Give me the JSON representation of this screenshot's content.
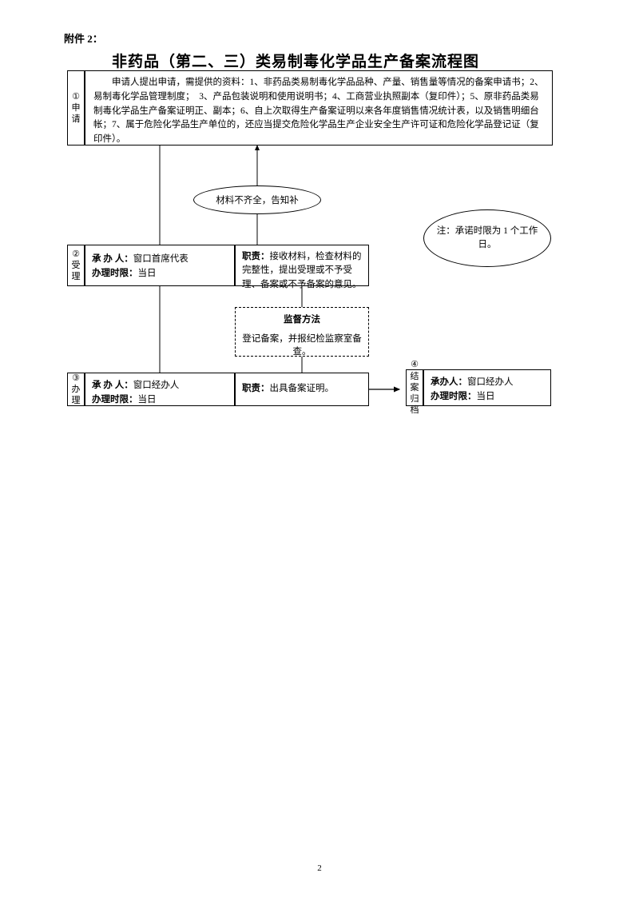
{
  "attachment_label": "附件 2：",
  "title": "非药品（第二、三）类易制毒化学品生产备案流程图",
  "page_number": "2",
  "colors": {
    "background": "#ffffff",
    "border": "#000000",
    "text": "#000000"
  },
  "step1": {
    "label_num": "①",
    "label_text": "申请",
    "content": "　　申请人提出申请，需提供的资料：1、非药品类易制毒化学品品种、产量、销售量等情况的备案申请书；2、易制毒化学品管理制度；　3、产品包装说明和使用说明书；4、工商营业执照副本（复印件）；5、原非药品类易制毒化学品生产备案证明正、副本；6、自上次取得生产备案证明以来各年度销售情况统计表，以及销售明细台帐；7、属于危险化学品生产单位的，还应当提交危险化学品生产企业安全生产许可证和危险化学品登记证（复印件）。"
  },
  "feedback": {
    "text": "材料不齐全，告知补"
  },
  "note": {
    "text": "注：承诺时限为 1 个工作日。"
  },
  "step2": {
    "label_num": "②",
    "label_text": "受理",
    "left_line1_label": "承 办 人：",
    "left_line1_value": "窗口首席代表",
    "left_line2_label": "办理时限：",
    "left_line2_value": "当日",
    "right_label": "职责：",
    "right_text": "接收材料，检查材料的完整性，提出受理或不予受理、备案或不予备案的意见。"
  },
  "supervision": {
    "heading": "监督方法",
    "text": "登记备案，并报纪检监察室备查。"
  },
  "step3": {
    "label_num": "③",
    "label_text": "办理",
    "left_line1_label": "承 办 人：",
    "left_line1_value": "窗口经办人",
    "left_line2_label": "办理时限：",
    "left_line2_value": "当日",
    "right_label": "职责：",
    "right_text": "出具备案证明。"
  },
  "step4": {
    "label_num": "④",
    "label_text": "结案归档",
    "line1_label": "承办人：",
    "line1_value": "窗口经办人",
    "line2_label": "办理时限：",
    "line2_value": "当日"
  }
}
